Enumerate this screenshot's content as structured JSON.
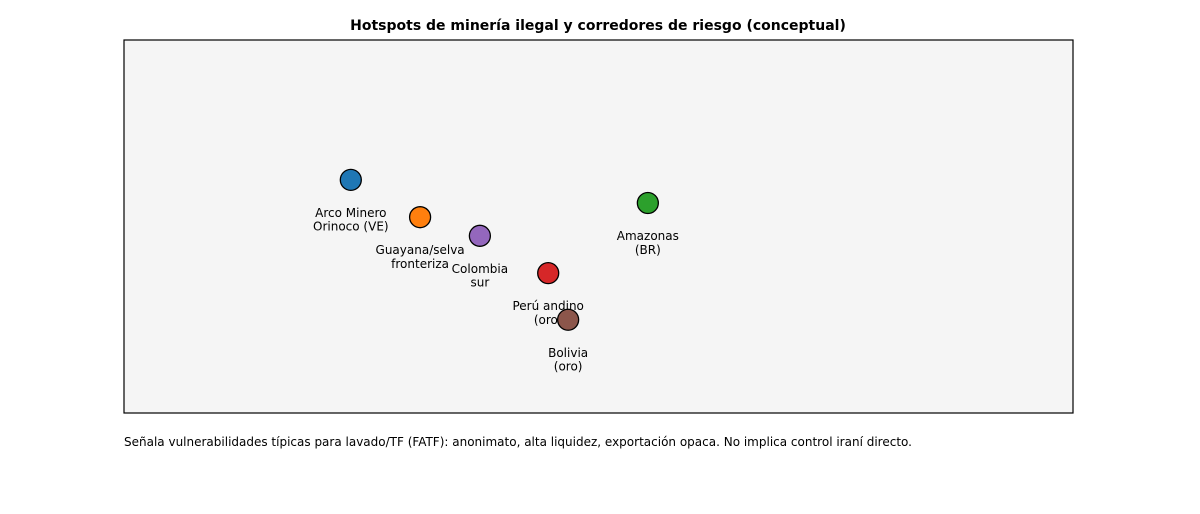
{
  "chart_data": {
    "type": "scatter",
    "title": "Hotspots de minería ilegal y corredores de riesgo (conceptual)",
    "xlim": [
      0,
      10
    ],
    "ylim": [
      0,
      10
    ],
    "points": [
      {
        "label": "Arco Minero\nOrinoco (VE)",
        "color": "#1f77b4",
        "x": 2.39,
        "y": 6.25
      },
      {
        "label": "Guayana/selva\nfronteriza",
        "color": "#ff7f0e",
        "x": 3.12,
        "y": 5.25
      },
      {
        "label": "Colombia\nsur",
        "color": "#9467bd",
        "x": 3.75,
        "y": 4.75
      },
      {
        "label": "Perú andino\n(oro)",
        "color": "#d62728",
        "x": 4.47,
        "y": 3.75
      },
      {
        "label": "Bolivia\n(oro)",
        "color": "#8c564b",
        "x": 4.68,
        "y": 2.5
      },
      {
        "label": "Amazonas\n(BR)",
        "color": "#2ca02c",
        "x": 5.52,
        "y": 5.63
      }
    ],
    "note": "Señala vulnerabilidades típicas para lavado/TF (FATF): anonimato, alta liquidez, exportación opaca. No implica control iraní directo."
  }
}
